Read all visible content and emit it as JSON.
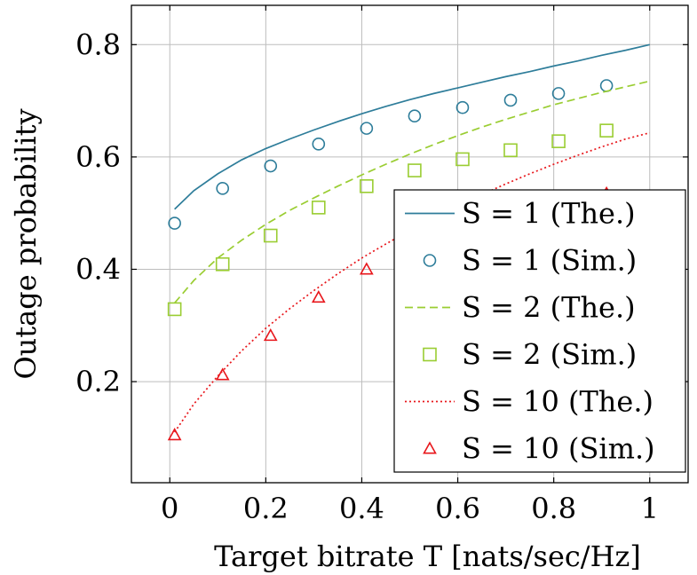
{
  "chart_data": {
    "type": "line",
    "title": "",
    "xlabel": "Target bitrate T [nats/sec/Hz]",
    "ylabel": "Outage probability",
    "xlim": [
      -0.08,
      1.08
    ],
    "ylim": [
      0.02,
      0.87
    ],
    "xticks": [
      0,
      0.2,
      0.4,
      0.6,
      0.8,
      1
    ],
    "xtick_labels": [
      "0",
      "0.2",
      "0.4",
      "0.6",
      "0.8",
      "1"
    ],
    "yticks": [
      0.2,
      0.4,
      0.6,
      0.8
    ],
    "ytick_labels": [
      "0.2",
      "0.4",
      "0.6",
      "0.8"
    ],
    "grid": true,
    "legend_position": "bottom-right",
    "series": [
      {
        "name": "S = 1 (The.)",
        "color": "#2e7d9a",
        "style": "solid",
        "marker": "none",
        "x": [
          0.01,
          0.05,
          0.1,
          0.15,
          0.2,
          0.25,
          0.3,
          0.35,
          0.4,
          0.45,
          0.5,
          0.55,
          0.6,
          0.65,
          0.7,
          0.75,
          0.8,
          0.85,
          0.9,
          0.95,
          1.0
        ],
        "y": [
          0.507,
          0.54,
          0.57,
          0.595,
          0.615,
          0.632,
          0.648,
          0.663,
          0.677,
          0.69,
          0.702,
          0.713,
          0.723,
          0.733,
          0.743,
          0.752,
          0.762,
          0.771,
          0.781,
          0.79,
          0.8
        ]
      },
      {
        "name": "S = 1 (Sim.)",
        "color": "#2e7d9a",
        "style": "none",
        "marker": "circle",
        "x": [
          0.01,
          0.11,
          0.21,
          0.31,
          0.41,
          0.51,
          0.61,
          0.71,
          0.81,
          0.91
        ],
        "y": [
          0.482,
          0.544,
          0.584,
          0.623,
          0.651,
          0.673,
          0.688,
          0.701,
          0.713,
          0.727
        ]
      },
      {
        "name": "S = 2 (The.)",
        "color": "#9acd32",
        "style": "dashed",
        "marker": "none",
        "x": [
          0.01,
          0.05,
          0.1,
          0.15,
          0.2,
          0.25,
          0.3,
          0.35,
          0.4,
          0.45,
          0.5,
          0.55,
          0.6,
          0.65,
          0.7,
          0.75,
          0.8,
          0.85,
          0.9,
          0.95,
          1.0
        ],
        "y": [
          0.34,
          0.38,
          0.42,
          0.452,
          0.48,
          0.505,
          0.527,
          0.548,
          0.568,
          0.587,
          0.605,
          0.622,
          0.638,
          0.653,
          0.667,
          0.68,
          0.693,
          0.704,
          0.715,
          0.725,
          0.735
        ]
      },
      {
        "name": "S = 2 (Sim.)",
        "color": "#9acd32",
        "style": "none",
        "marker": "square",
        "x": [
          0.01,
          0.11,
          0.21,
          0.31,
          0.41,
          0.51,
          0.61,
          0.71,
          0.81,
          0.91
        ],
        "y": [
          0.329,
          0.409,
          0.46,
          0.51,
          0.548,
          0.576,
          0.596,
          0.612,
          0.628,
          0.647
        ]
      },
      {
        "name": "S = 10 (The.)",
        "color": "#e8161b",
        "style": "dotted",
        "marker": "none",
        "x": [
          0.01,
          0.05,
          0.1,
          0.15,
          0.2,
          0.25,
          0.3,
          0.35,
          0.4,
          0.45,
          0.5,
          0.55,
          0.6,
          0.65,
          0.7,
          0.75,
          0.8,
          0.85,
          0.9,
          0.95,
          1.0
        ],
        "y": [
          0.11,
          0.16,
          0.21,
          0.255,
          0.295,
          0.33,
          0.362,
          0.392,
          0.42,
          0.445,
          0.469,
          0.492,
          0.513,
          0.533,
          0.552,
          0.57,
          0.587,
          0.603,
          0.618,
          0.632,
          0.643
        ]
      },
      {
        "name": "S = 10 (Sim.)",
        "color": "#e8161b",
        "style": "none",
        "marker": "triangle",
        "x": [
          0.01,
          0.11,
          0.21,
          0.31,
          0.41,
          0.51,
          0.61,
          0.71,
          0.81,
          0.91
        ],
        "y": [
          0.105,
          0.212,
          0.282,
          0.35,
          0.4,
          0.445,
          0.47,
          0.495,
          0.515,
          0.535
        ]
      }
    ]
  }
}
